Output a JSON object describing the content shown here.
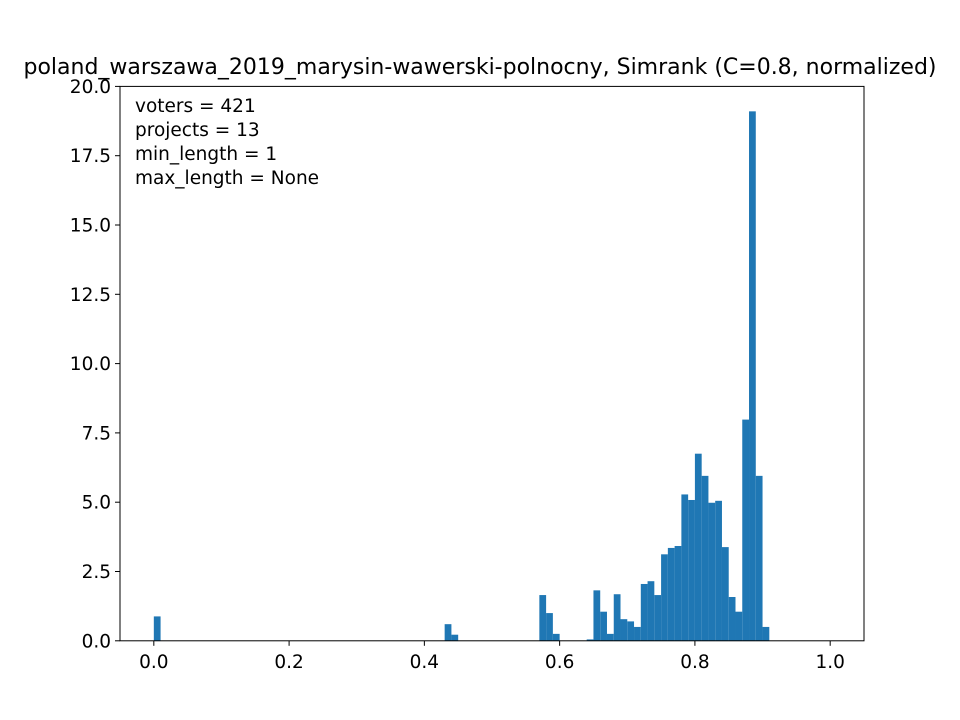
{
  "chart_data": {
    "type": "bar",
    "title": "poland_warszawa_2019_marysin-wawerski-polnocny, Simrank (C=0.8, normalized)",
    "xlabel": "",
    "ylabel": "",
    "xlim": [
      -0.05,
      1.05
    ],
    "ylim": [
      0,
      20
    ],
    "xticks": [
      0.0,
      0.2,
      0.4,
      0.6,
      0.8,
      1.0
    ],
    "xtick_labels": [
      "0.0",
      "0.2",
      "0.4",
      "0.6",
      "0.8",
      "1.0"
    ],
    "yticks": [
      0.0,
      2.5,
      5.0,
      7.5,
      10.0,
      12.5,
      15.0,
      17.5,
      20.0
    ],
    "ytick_labels": [
      "0.0",
      "2.5",
      "5.0",
      "7.5",
      "10.0",
      "12.5",
      "15.0",
      "17.5",
      "20.0"
    ],
    "bin_width": 0.01,
    "color": "#1f77b4",
    "annotations": [
      "voters = 421",
      "projects = 13",
      "min_length = 1",
      "max_length = None"
    ],
    "bins": [
      {
        "x": 0.0,
        "value": 0.88
      },
      {
        "x": 0.43,
        "value": 0.6
      },
      {
        "x": 0.44,
        "value": 0.22
      },
      {
        "x": 0.57,
        "value": 1.65
      },
      {
        "x": 0.58,
        "value": 1.0
      },
      {
        "x": 0.59,
        "value": 0.25
      },
      {
        "x": 0.64,
        "value": 0.05
      },
      {
        "x": 0.65,
        "value": 1.82
      },
      {
        "x": 0.66,
        "value": 1.05
      },
      {
        "x": 0.67,
        "value": 0.25
      },
      {
        "x": 0.68,
        "value": 1.68
      },
      {
        "x": 0.69,
        "value": 0.78
      },
      {
        "x": 0.7,
        "value": 0.7
      },
      {
        "x": 0.71,
        "value": 0.5
      },
      {
        "x": 0.72,
        "value": 2.05
      },
      {
        "x": 0.73,
        "value": 2.15
      },
      {
        "x": 0.74,
        "value": 1.65
      },
      {
        "x": 0.75,
        "value": 3.12
      },
      {
        "x": 0.76,
        "value": 3.35
      },
      {
        "x": 0.77,
        "value": 3.42
      },
      {
        "x": 0.78,
        "value": 5.28
      },
      {
        "x": 0.79,
        "value": 5.08
      },
      {
        "x": 0.8,
        "value": 6.75
      },
      {
        "x": 0.81,
        "value": 5.95
      },
      {
        "x": 0.82,
        "value": 4.98
      },
      {
        "x": 0.83,
        "value": 5.05
      },
      {
        "x": 0.84,
        "value": 3.38
      },
      {
        "x": 0.85,
        "value": 1.58
      },
      {
        "x": 0.86,
        "value": 1.05
      },
      {
        "x": 0.87,
        "value": 7.98
      },
      {
        "x": 0.88,
        "value": 19.1
      },
      {
        "x": 0.89,
        "value": 5.95
      },
      {
        "x": 0.9,
        "value": 0.5
      }
    ]
  }
}
